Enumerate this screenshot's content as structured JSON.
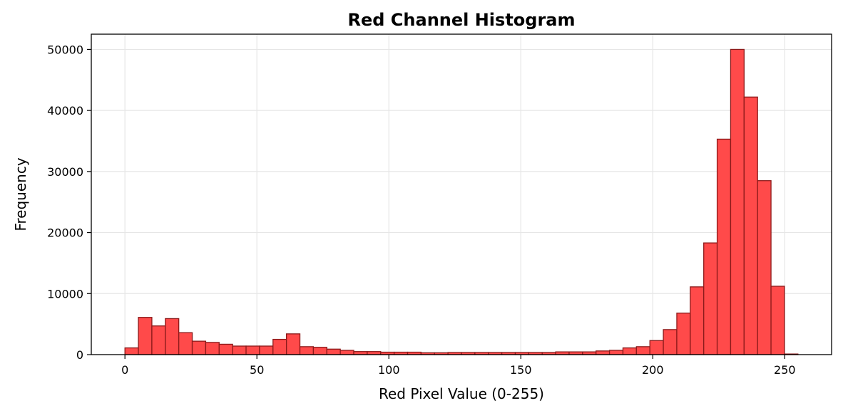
{
  "chart_data": {
    "type": "bar",
    "title": "Red Channel Histogram",
    "xlabel": "Red Pixel Value (0-255)",
    "ylabel": "Frequency",
    "xlim": [
      -12.75,
      267.75
    ],
    "ylim": [
      0,
      52500
    ],
    "bin_start": 0,
    "bin_width": 5.1,
    "values": [
      1100,
      6100,
      4700,
      5900,
      3600,
      2200,
      2000,
      1700,
      1400,
      1400,
      1400,
      2500,
      3400,
      1300,
      1200,
      900,
      700,
      500,
      500,
      400,
      400,
      400,
      300,
      300,
      350,
      350,
      350,
      350,
      350,
      350,
      350,
      350,
      450,
      450,
      450,
      600,
      700,
      1100,
      1300,
      2300,
      4100,
      6800,
      11100,
      18300,
      35300,
      50000,
      42200,
      28500,
      11200,
      100
    ],
    "x_ticks": [
      0,
      50,
      100,
      150,
      200,
      250
    ],
    "y_ticks": [
      0,
      10000,
      20000,
      30000,
      40000,
      50000
    ],
    "grid": true,
    "colors": {
      "fill": "#ff4a4a",
      "edge": "#8b1a1a",
      "grid": "#e6e6e6"
    }
  }
}
